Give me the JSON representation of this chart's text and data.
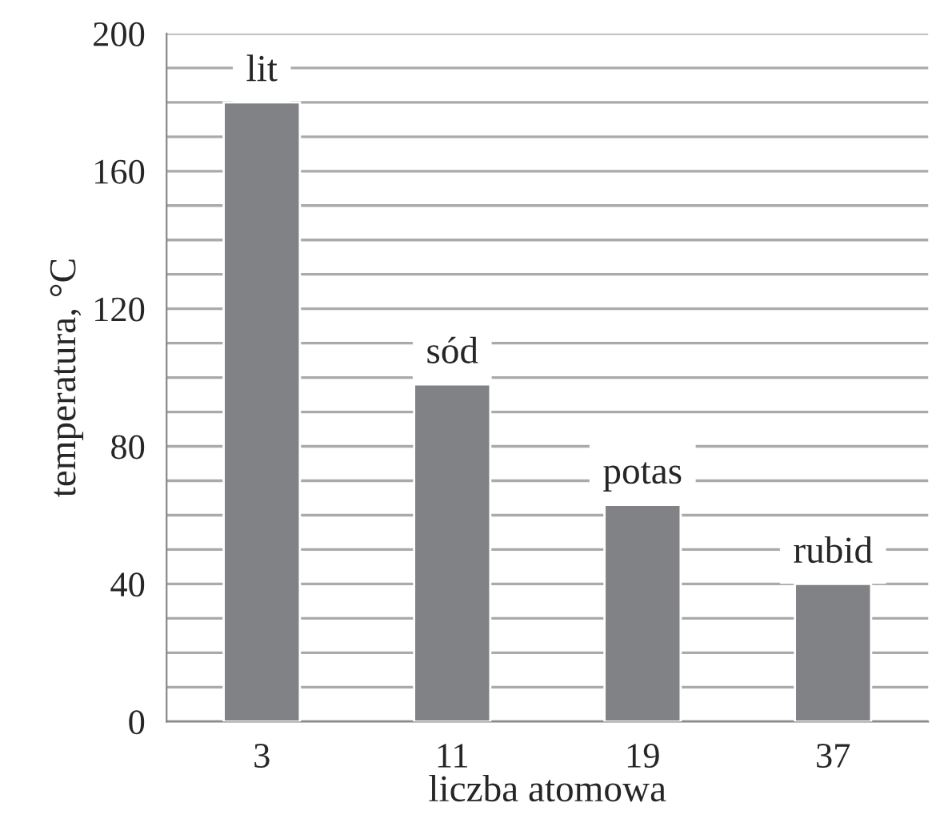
{
  "chart_data": {
    "type": "bar",
    "xlabel": "liczba atomowa",
    "ylabel": "temperatura, °C",
    "categories": [
      "3",
      "11",
      "19",
      "37"
    ],
    "values": [
      180,
      98,
      63,
      40
    ],
    "color": "#818285",
    "ylim": [
      0,
      200
    ],
    "yticks": [
      0,
      {
        "value": 10,
        "label": null
      },
      {
        "value": 20,
        "label": null
      },
      {
        "value": 30,
        "label": null
      },
      40,
      {
        "value": 50,
        "label": null
      },
      {
        "value": 60,
        "label": null
      },
      {
        "value": 70,
        "label": null
      },
      80,
      {
        "value": 90,
        "label": null
      },
      {
        "value": 100,
        "label": null
      },
      {
        "value": 110,
        "label": null
      },
      120,
      {
        "value": 130,
        "label": null
      },
      {
        "value": 140,
        "label": null
      },
      {
        "value": 150,
        "label": null
      },
      160,
      {
        "value": 170,
        "label": null
      },
      {
        "value": 180,
        "label": null
      },
      {
        "value": 190,
        "label": null
      },
      200
    ],
    "grid": "y",
    "annotations": [
      {
        "text": "lit",
        "x": "3",
        "y": 180
      },
      {
        "text": "sód",
        "x": "11",
        "y": 98
      },
      {
        "text": "potas",
        "x": "19",
        "y": 63
      },
      {
        "text": "rubid",
        "x": "37",
        "y": 40
      }
    ]
  }
}
